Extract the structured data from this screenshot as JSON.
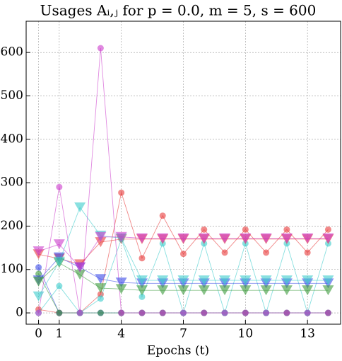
{
  "chart_data": {
    "type": "line",
    "title": "Usages Aᵢ,ⱼ for p = 0.0, m = 5, s = 600",
    "xlabel": "Epochs (t)",
    "x": [
      0,
      1,
      2,
      3,
      4,
      5,
      6,
      7,
      8,
      9,
      10,
      11,
      12,
      13,
      14
    ],
    "xlim": [
      -0.6,
      14.6
    ],
    "xticks": [
      0,
      1,
      4,
      7,
      10,
      13
    ],
    "ylim": [
      -26,
      672
    ],
    "yticks": [
      0,
      100,
      200,
      300,
      400,
      500,
      600
    ],
    "grid": true,
    "series": [
      {
        "color": "#e83a3a",
        "marker": "circle",
        "values": [
          8,
          0,
          0,
          43,
          277,
          126,
          224,
          136,
          192,
          139,
          192,
          139,
          192,
          139,
          192
        ]
      },
      {
        "color": "#3a4ae8",
        "marker": "circle",
        "values": [
          105,
          0,
          0,
          0,
          0,
          0,
          0,
          0,
          0,
          0,
          0,
          0,
          0,
          0,
          0
        ]
      },
      {
        "color": "#3a9a3a",
        "marker": "circle",
        "values": [
          90,
          0,
          0,
          0,
          0,
          0,
          0,
          0,
          0,
          0,
          0,
          0,
          0,
          0,
          0
        ]
      },
      {
        "color": "#3acccc",
        "marker": "circle",
        "values": [
          0,
          62,
          0,
          33,
          170,
          37,
          160,
          0,
          160,
          0,
          160,
          0,
          160,
          0,
          160
        ]
      },
      {
        "color": "#cc3acc",
        "marker": "circle",
        "values": [
          0,
          290,
          0,
          610,
          0,
          0,
          0,
          0,
          0,
          0,
          0,
          0,
          0,
          0,
          0
        ]
      },
      {
        "color": "#e83a3a",
        "marker": "triangle",
        "values": [
          135,
          125,
          112,
          163,
          170,
          170,
          170,
          170,
          170,
          170,
          170,
          170,
          170,
          170,
          170
        ]
      },
      {
        "color": "#3a4ae8",
        "marker": "triangle",
        "values": [
          75,
          128,
          105,
          78,
          70,
          68,
          68,
          68,
          68,
          68,
          68,
          68,
          68,
          68,
          68
        ]
      },
      {
        "color": "#3a9a3a",
        "marker": "triangle",
        "values": [
          72,
          115,
          88,
          57,
          55,
          52,
          52,
          52,
          52,
          52,
          52,
          52,
          52,
          52,
          52
        ]
      },
      {
        "color": "#3acccc",
        "marker": "triangle",
        "values": [
          38,
          118,
          243,
          178,
          172,
          75,
          75,
          75,
          75,
          75,
          75,
          75,
          75,
          75,
          75
        ]
      },
      {
        "color": "#cc3acc",
        "marker": "triangle",
        "values": [
          142,
          158,
          105,
          175,
          175,
          172,
          172,
          172,
          172,
          172,
          172,
          172,
          172,
          172,
          172
        ]
      }
    ]
  }
}
